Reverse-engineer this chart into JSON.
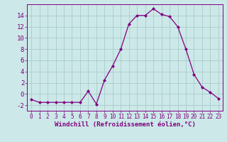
{
  "x": [
    0,
    1,
    2,
    3,
    4,
    5,
    6,
    7,
    8,
    9,
    10,
    11,
    12,
    13,
    14,
    15,
    16,
    17,
    18,
    19,
    20,
    21,
    22,
    23
  ],
  "y": [
    -1,
    -1.5,
    -1.5,
    -1.5,
    -1.5,
    -1.5,
    -1.5,
    0.5,
    -1.8,
    2.5,
    5,
    8,
    12.5,
    14,
    14,
    15.2,
    14.2,
    13.8,
    12,
    8,
    3.5,
    1.2,
    0.3,
    -0.8
  ],
  "line_color": "#800080",
  "marker_color": "#800080",
  "bg_color": "#cce8e8",
  "grid_color": "#aacccc",
  "axis_color": "#800080",
  "tick_color": "#800080",
  "xlabel": "Windchill (Refroidissement éolien,°C)",
  "ylim": [
    -3,
    16
  ],
  "yticks": [
    -2,
    0,
    2,
    4,
    6,
    8,
    10,
    12,
    14
  ],
  "xticks": [
    0,
    1,
    2,
    3,
    4,
    5,
    6,
    7,
    8,
    9,
    10,
    11,
    12,
    13,
    14,
    15,
    16,
    17,
    18,
    19,
    20,
    21,
    22,
    23
  ],
  "xlabel_fontsize": 6.5,
  "tick_fontsize": 6.5
}
